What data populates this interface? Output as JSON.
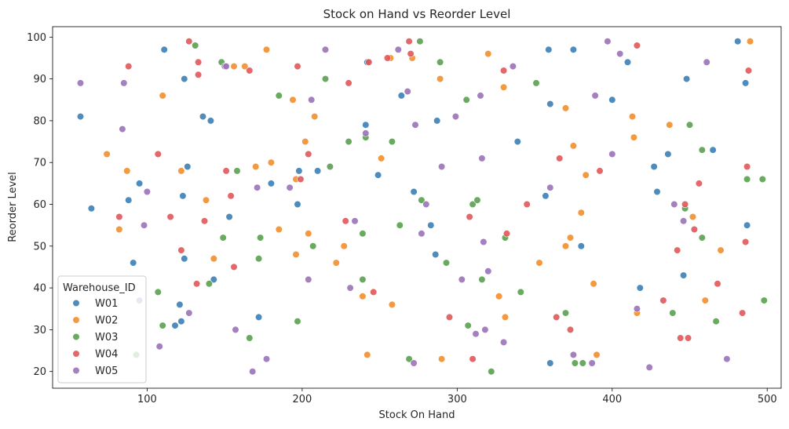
{
  "chart_data": {
    "type": "scatter",
    "title": "Stock on Hand vs Reorder Level",
    "xlabel": "Stock On Hand",
    "ylabel": "Reorder Level",
    "xlim": [
      39,
      509
    ],
    "ylim": [
      16,
      102.5
    ],
    "xticks": [
      100,
      200,
      300,
      400,
      500
    ],
    "yticks": [
      20,
      30,
      40,
      50,
      60,
      70,
      80,
      90,
      100
    ],
    "grid": false,
    "legend": {
      "title": "Warehouse_ID",
      "placement": "lower-left"
    },
    "series": [
      {
        "name": "W01",
        "color": "#3a7fb5",
        "points": [
          [
            57,
            81
          ],
          [
            64,
            59
          ],
          [
            88,
            61
          ],
          [
            91,
            46
          ],
          [
            95,
            65
          ],
          [
            111,
            97
          ],
          [
            118,
            31
          ],
          [
            121,
            36
          ],
          [
            122,
            32
          ],
          [
            123,
            62
          ],
          [
            124,
            47
          ],
          [
            124,
            90
          ],
          [
            126,
            69
          ],
          [
            136,
            81
          ],
          [
            141,
            80
          ],
          [
            143,
            42
          ],
          [
            153,
            57
          ],
          [
            172,
            33
          ],
          [
            180,
            65
          ],
          [
            197,
            60
          ],
          [
            198,
            68
          ],
          [
            210,
            68
          ],
          [
            241,
            79
          ],
          [
            242,
            94
          ],
          [
            249,
            67
          ],
          [
            264,
            86
          ],
          [
            272,
            63
          ],
          [
            283,
            55
          ],
          [
            286,
            48
          ],
          [
            287,
            80
          ],
          [
            339,
            75
          ],
          [
            357,
            62
          ],
          [
            359,
            97
          ],
          [
            360,
            84
          ],
          [
            360,
            22
          ],
          [
            375,
            97
          ],
          [
            380,
            50
          ],
          [
            400,
            85
          ],
          [
            410,
            94
          ],
          [
            418,
            40
          ],
          [
            427,
            69
          ],
          [
            429,
            63
          ],
          [
            436,
            72
          ],
          [
            446,
            43
          ],
          [
            448,
            90
          ],
          [
            465,
            73
          ],
          [
            481,
            99
          ],
          [
            486,
            89
          ],
          [
            487,
            55
          ]
        ]
      },
      {
        "name": "W02",
        "color": "#f28e2b",
        "points": [
          [
            74,
            72
          ],
          [
            82,
            54
          ],
          [
            87,
            68
          ],
          [
            110,
            86
          ],
          [
            122,
            68
          ],
          [
            138,
            61
          ],
          [
            143,
            47
          ],
          [
            156,
            93
          ],
          [
            163,
            93
          ],
          [
            170,
            69
          ],
          [
            177,
            97
          ],
          [
            180,
            70
          ],
          [
            185,
            54
          ],
          [
            194,
            85
          ],
          [
            196,
            66
          ],
          [
            196,
            48
          ],
          [
            202,
            75
          ],
          [
            204,
            53
          ],
          [
            208,
            81
          ],
          [
            222,
            46
          ],
          [
            227,
            50
          ],
          [
            239,
            38
          ],
          [
            242,
            24
          ],
          [
            251,
            71
          ],
          [
            257,
            95
          ],
          [
            258,
            36
          ],
          [
            271,
            95
          ],
          [
            289,
            90
          ],
          [
            290,
            23
          ],
          [
            320,
            96
          ],
          [
            327,
            38
          ],
          [
            330,
            88
          ],
          [
            331,
            33
          ],
          [
            353,
            46
          ],
          [
            370,
            50
          ],
          [
            370,
            83
          ],
          [
            373,
            52
          ],
          [
            375,
            74
          ],
          [
            380,
            58
          ],
          [
            383,
            67
          ],
          [
            388,
            41
          ],
          [
            390,
            24
          ],
          [
            413,
            81
          ],
          [
            414,
            76
          ],
          [
            416,
            34
          ],
          [
            437,
            79
          ],
          [
            452,
            57
          ],
          [
            460,
            37
          ],
          [
            470,
            49
          ],
          [
            489,
            99
          ]
        ]
      },
      {
        "name": "W03",
        "color": "#59a14f",
        "points": [
          [
            93,
            24
          ],
          [
            107,
            39
          ],
          [
            110,
            31
          ],
          [
            131,
            98
          ],
          [
            140,
            41
          ],
          [
            148,
            94
          ],
          [
            149,
            52
          ],
          [
            158,
            68
          ],
          [
            166,
            28
          ],
          [
            172,
            47
          ],
          [
            173,
            52
          ],
          [
            185,
            86
          ],
          [
            197,
            32
          ],
          [
            207,
            50
          ],
          [
            215,
            90
          ],
          [
            218,
            69
          ],
          [
            230,
            75
          ],
          [
            239,
            53
          ],
          [
            239,
            42
          ],
          [
            241,
            76
          ],
          [
            258,
            75
          ],
          [
            263,
            55
          ],
          [
            269,
            23
          ],
          [
            276,
            99
          ],
          [
            277,
            61
          ],
          [
            289,
            94
          ],
          [
            293,
            46
          ],
          [
            306,
            85
          ],
          [
            307,
            31
          ],
          [
            310,
            60
          ],
          [
            313,
            61
          ],
          [
            316,
            42
          ],
          [
            331,
            52
          ],
          [
            322,
            20
          ],
          [
            341,
            39
          ],
          [
            351,
            89
          ],
          [
            370,
            34
          ],
          [
            376,
            22
          ],
          [
            381,
            22
          ],
          [
            439,
            34
          ],
          [
            447,
            59
          ],
          [
            450,
            79
          ],
          [
            458,
            73
          ],
          [
            458,
            52
          ],
          [
            467,
            32
          ],
          [
            487,
            66
          ],
          [
            497,
            66
          ],
          [
            498,
            37
          ]
        ]
      },
      {
        "name": "W04",
        "color": "#e15759",
        "points": [
          [
            82,
            57
          ],
          [
            88,
            93
          ],
          [
            107,
            72
          ],
          [
            115,
            57
          ],
          [
            122,
            49
          ],
          [
            127,
            99
          ],
          [
            132,
            41
          ],
          [
            133,
            94
          ],
          [
            133,
            91
          ],
          [
            137,
            56
          ],
          [
            151,
            68
          ],
          [
            154,
            62
          ],
          [
            156,
            45
          ],
          [
            166,
            92
          ],
          [
            197,
            93
          ],
          [
            199,
            66
          ],
          [
            204,
            72
          ],
          [
            228,
            56
          ],
          [
            230,
            89
          ],
          [
            243,
            94
          ],
          [
            246,
            39
          ],
          [
            255,
            95
          ],
          [
            269,
            99
          ],
          [
            270,
            96
          ],
          [
            295,
            33
          ],
          [
            308,
            57
          ],
          [
            310,
            23
          ],
          [
            330,
            92
          ],
          [
            332,
            53
          ],
          [
            345,
            60
          ],
          [
            364,
            33
          ],
          [
            366,
            71
          ],
          [
            373,
            30
          ],
          [
            392,
            68
          ],
          [
            416,
            98
          ],
          [
            433,
            37
          ],
          [
            442,
            49
          ],
          [
            444,
            28
          ],
          [
            447,
            60
          ],
          [
            449,
            28
          ],
          [
            453,
            54
          ],
          [
            456,
            65
          ],
          [
            468,
            41
          ],
          [
            484,
            34
          ],
          [
            486,
            51
          ],
          [
            487,
            69
          ],
          [
            488,
            92
          ]
        ]
      },
      {
        "name": "W05",
        "color": "#9b72b8",
        "points": [
          [
            57,
            89
          ],
          [
            84,
            78
          ],
          [
            85,
            89
          ],
          [
            95,
            37
          ],
          [
            98,
            55
          ],
          [
            100,
            63
          ],
          [
            108,
            26
          ],
          [
            127,
            34
          ],
          [
            150,
            93
          ],
          [
            151,
            93
          ],
          [
            157,
            30
          ],
          [
            168,
            20
          ],
          [
            171,
            64
          ],
          [
            177,
            23
          ],
          [
            192,
            64
          ],
          [
            204,
            42
          ],
          [
            206,
            85
          ],
          [
            215,
            97
          ],
          [
            231,
            40
          ],
          [
            234,
            56
          ],
          [
            241,
            77
          ],
          [
            262,
            97
          ],
          [
            268,
            87
          ],
          [
            272,
            22
          ],
          [
            273,
            79
          ],
          [
            277,
            53
          ],
          [
            280,
            60
          ],
          [
            290,
            69
          ],
          [
            299,
            81
          ],
          [
            303,
            42
          ],
          [
            312,
            29
          ],
          [
            315,
            86
          ],
          [
            316,
            71
          ],
          [
            317,
            51
          ],
          [
            318,
            30
          ],
          [
            320,
            44
          ],
          [
            330,
            27
          ],
          [
            336,
            93
          ],
          [
            360,
            64
          ],
          [
            375,
            24
          ],
          [
            387,
            22
          ],
          [
            389,
            86
          ],
          [
            397,
            99
          ],
          [
            400,
            72
          ],
          [
            405,
            96
          ],
          [
            416,
            35
          ],
          [
            424,
            21
          ],
          [
            440,
            60
          ],
          [
            446,
            56
          ],
          [
            461,
            94
          ],
          [
            474,
            23
          ]
        ]
      }
    ]
  }
}
